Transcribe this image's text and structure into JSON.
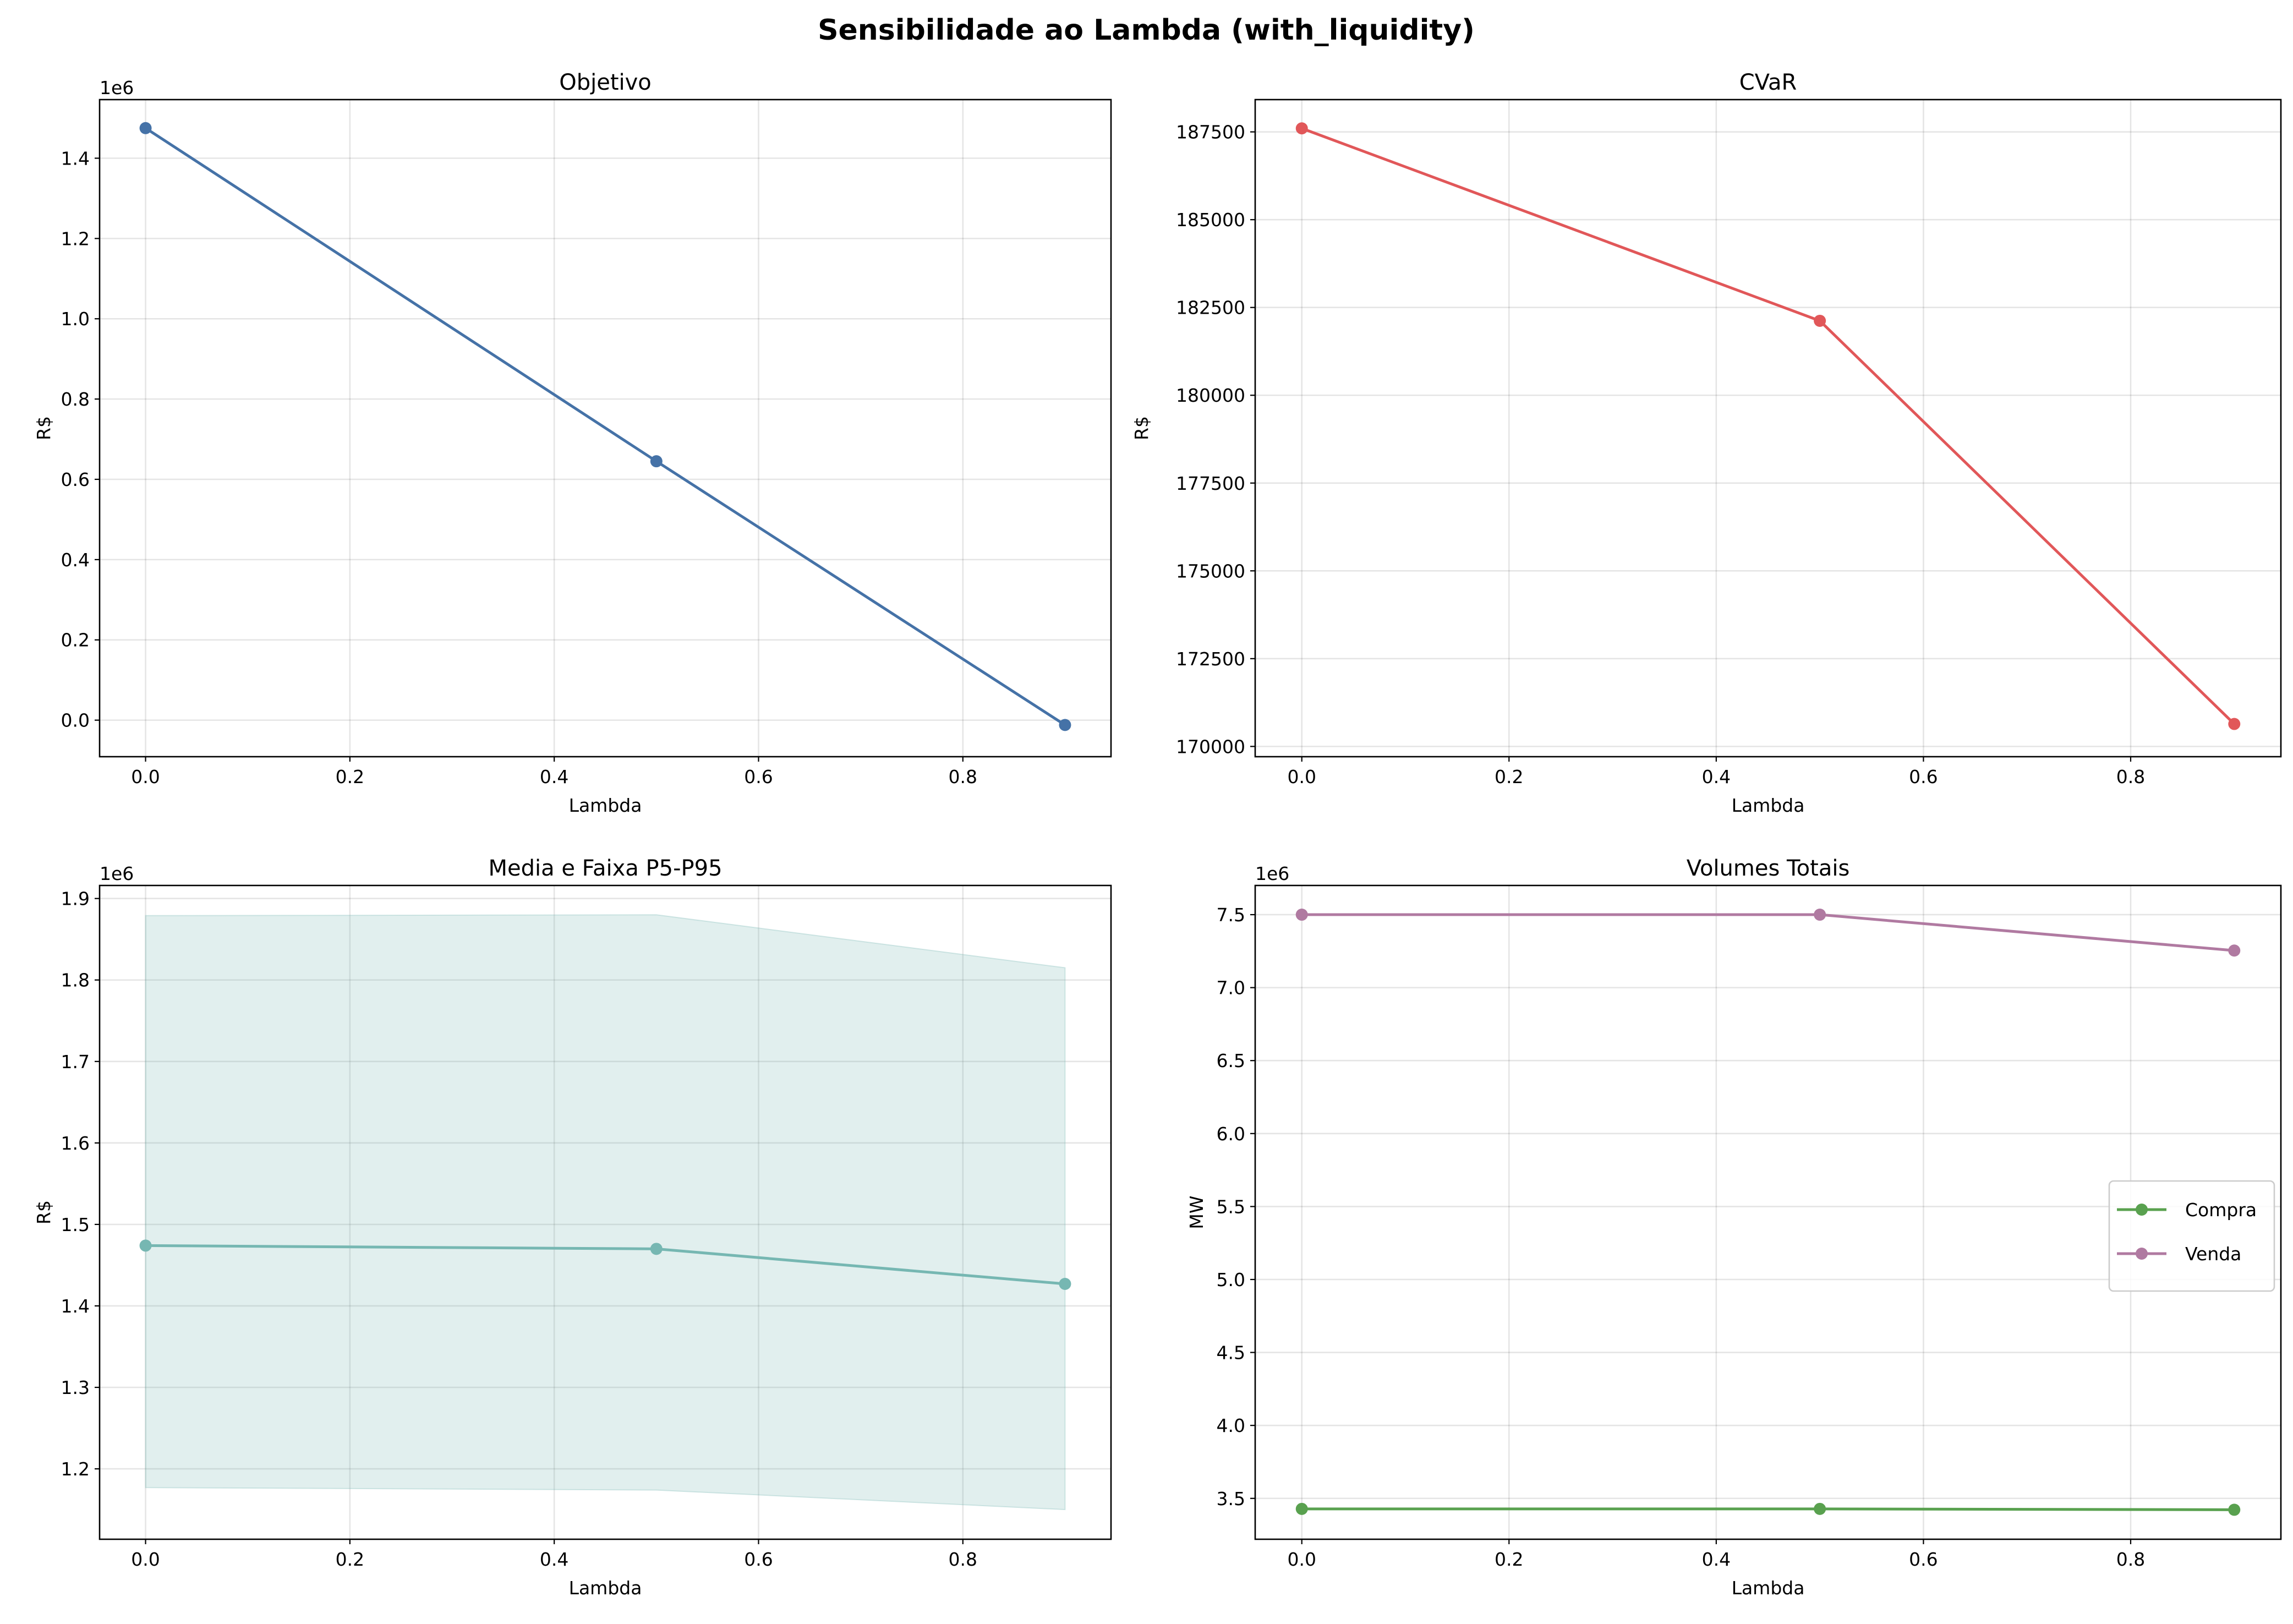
{
  "suptitle": "Sensibilidade ao Lambda (with_liquidity)",
  "chart_data": [
    {
      "type": "line",
      "title": "Objetivo",
      "xlabel": "Lambda",
      "ylabel": "R$",
      "offset_text": "1e6",
      "x": [
        0.0,
        0.5,
        0.9
      ],
      "xlim": [
        -0.045,
        0.945
      ],
      "xticks": [
        0.0,
        0.2,
        0.4,
        0.6,
        0.8
      ],
      "xtick_labels": [
        "0.0",
        "0.2",
        "0.4",
        "0.6",
        "0.8"
      ],
      "ylim": [
        -0.091,
        1.546
      ],
      "yticks": [
        0.0,
        0.2,
        0.4,
        0.6,
        0.8,
        1.0,
        1.2,
        1.4
      ],
      "ytick_labels": [
        "0.0",
        "0.2",
        "0.4",
        "0.6",
        "0.8",
        "1.0",
        "1.2",
        "1.4"
      ],
      "grid": true,
      "series": [
        {
          "values": [
            1.475,
            0.645,
            -0.012
          ],
          "color": "#4572a7",
          "marker": "circle"
        }
      ]
    },
    {
      "type": "line",
      "title": "CVaR",
      "xlabel": "Lambda",
      "ylabel": "R$",
      "offset_text": "",
      "x": [
        0.0,
        0.5,
        0.9
      ],
      "xlim": [
        -0.045,
        0.945
      ],
      "xticks": [
        0.0,
        0.2,
        0.4,
        0.6,
        0.8
      ],
      "xtick_labels": [
        "0.0",
        "0.2",
        "0.4",
        "0.6",
        "0.8"
      ],
      "ylim": [
        169708,
        188419
      ],
      "yticks": [
        170000,
        172500,
        175000,
        177500,
        180000,
        182500,
        185000,
        187500
      ],
      "ytick_labels": [
        "170000",
        "172500",
        "175000",
        "177500",
        "180000",
        "182500",
        "185000",
        "187500"
      ],
      "grid": true,
      "series": [
        {
          "values": [
            187600,
            182120,
            170640
          ],
          "color": "#e15759",
          "marker": "circle"
        }
      ]
    },
    {
      "type": "area",
      "title": "Media e Faixa P5-P95",
      "xlabel": "Lambda",
      "ylabel": "R$",
      "offset_text": "1e6",
      "x": [
        0.0,
        0.5,
        0.9
      ],
      "xlim": [
        -0.045,
        0.945
      ],
      "xticks": [
        0.0,
        0.2,
        0.4,
        0.6,
        0.8
      ],
      "xtick_labels": [
        "0.0",
        "0.2",
        "0.4",
        "0.6",
        "0.8"
      ],
      "ylim": [
        1.1136,
        1.916
      ],
      "yticks": [
        1.2,
        1.3,
        1.4,
        1.5,
        1.6,
        1.7,
        1.8,
        1.9
      ],
      "ytick_labels": [
        "1.2",
        "1.3",
        "1.4",
        "1.5",
        "1.6",
        "1.7",
        "1.8",
        "1.9"
      ],
      "grid": true,
      "band": {
        "lower": [
          1.177,
          1.174,
          1.15
        ],
        "upper": [
          1.879,
          1.88,
          1.815
        ],
        "color": "#76b7b2",
        "opacity": 0.22
      },
      "series": [
        {
          "values": [
            1.474,
            1.47,
            1.427
          ],
          "color": "#76b7b2",
          "marker": "circle"
        }
      ]
    },
    {
      "type": "line",
      "title": "Volumes Totais",
      "xlabel": "Lambda",
      "ylabel": "MW",
      "offset_text": "1e6",
      "x": [
        0.0,
        0.5,
        0.9
      ],
      "xlim": [
        -0.045,
        0.945
      ],
      "xticks": [
        0.0,
        0.2,
        0.4,
        0.6,
        0.8
      ],
      "xtick_labels": [
        "0.0",
        "0.2",
        "0.4",
        "0.6",
        "0.8"
      ],
      "ylim": [
        3.22,
        7.7
      ],
      "yticks": [
        3.5,
        4.0,
        4.5,
        5.0,
        5.5,
        6.0,
        6.5,
        7.0,
        7.5
      ],
      "ytick_labels": [
        "3.5",
        "4.0",
        "4.5",
        "5.0",
        "5.5",
        "6.0",
        "6.5",
        "7.0",
        "7.5"
      ],
      "grid": true,
      "legend_position": "center-right",
      "series": [
        {
          "name": "Compra",
          "values": [
            3.428,
            3.428,
            3.422
          ],
          "color": "#59a14f",
          "marker": "circle"
        },
        {
          "name": "Venda",
          "values": [
            7.5,
            7.5,
            7.254
          ],
          "color": "#b07aa1",
          "marker": "circle"
        }
      ]
    }
  ]
}
